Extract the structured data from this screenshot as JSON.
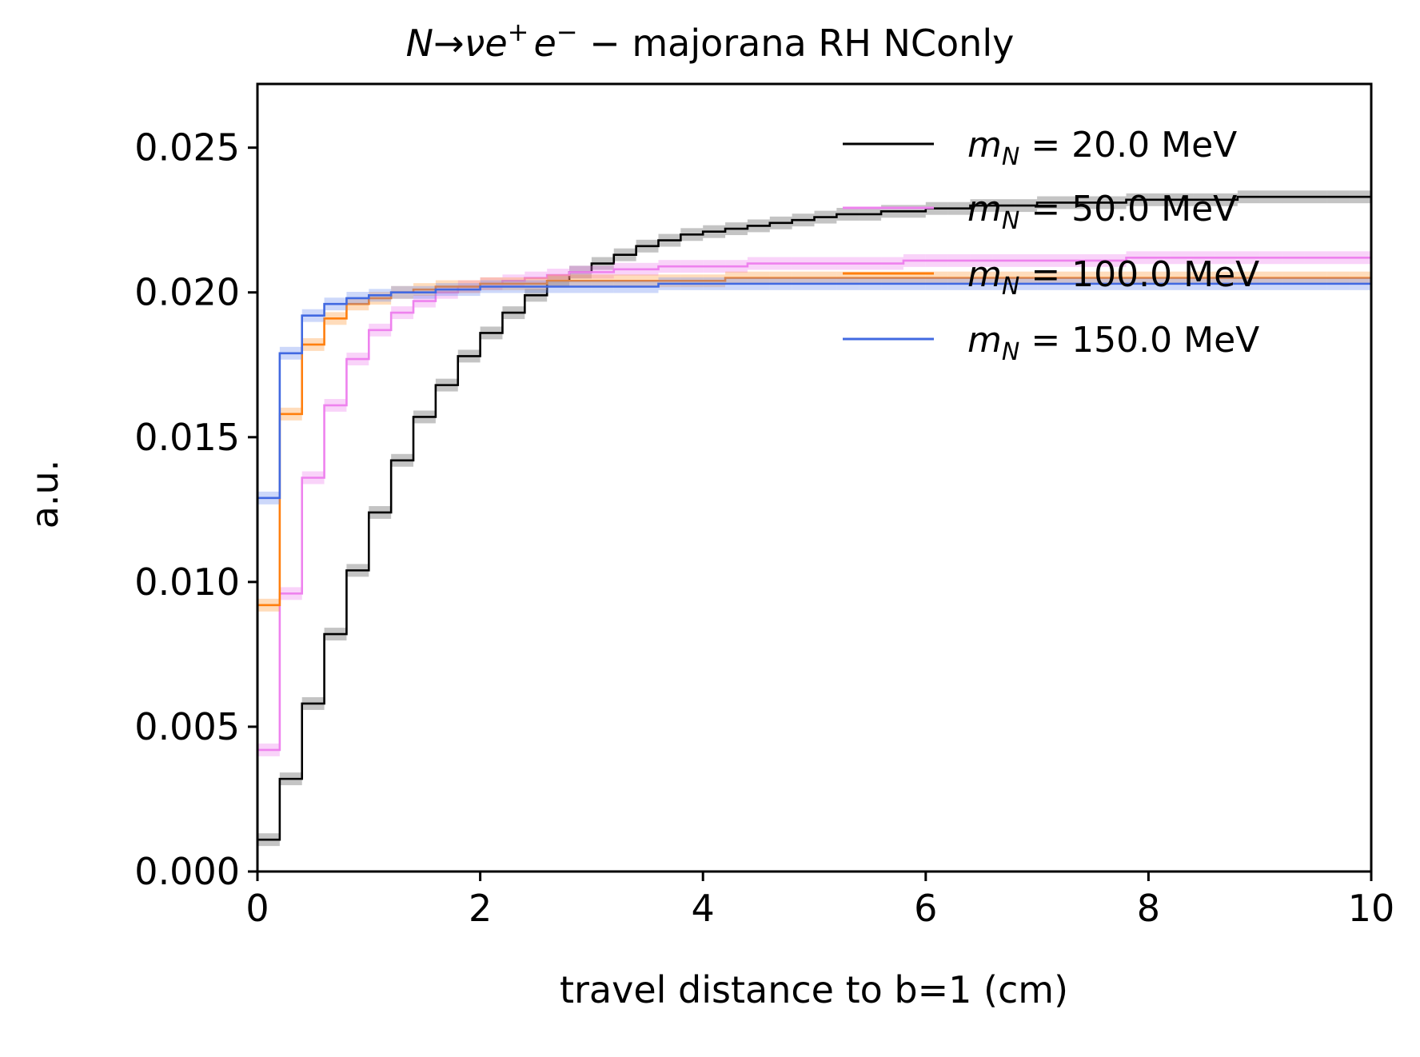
{
  "chart_data": {
    "type": "line",
    "title": "N→νe⁺e⁻ − majorana RH NConly",
    "title_parts": {
      "N": "N",
      "arrow": "→",
      "nu": "ν",
      "e": "e",
      "plus": "+",
      "minus": "−",
      "rest": " − majorana RH NConly"
    },
    "xlabel": "travel distance to b=1 (cm)",
    "ylabel": "a.u.",
    "xlim": [
      0,
      10
    ],
    "ylim": [
      0,
      0.0272
    ],
    "xticks": [
      0,
      2,
      4,
      6,
      8,
      10
    ],
    "xtick_labels": [
      "0",
      "2",
      "4",
      "6",
      "8",
      "10"
    ],
    "yticks": [
      0,
      0.005,
      0.01,
      0.015,
      0.02,
      0.025
    ],
    "ytick_labels": [
      "0.000",
      "0.005",
      "0.010",
      "0.015",
      "0.020",
      "0.025"
    ],
    "grid": false,
    "legend_position": "top-right",
    "step": true,
    "bin_edges": [
      0,
      0.2,
      0.4,
      0.6,
      0.8,
      1.0,
      1.2,
      1.4,
      1.6,
      1.8,
      2.0,
      2.2,
      2.4,
      2.6,
      2.8,
      3.0,
      3.2,
      3.4,
      3.6,
      3.8,
      4.0,
      4.2,
      4.4,
      4.6,
      4.8,
      5.0,
      5.2,
      5.4,
      5.6,
      5.8,
      6.0,
      6.2,
      6.4,
      6.6,
      6.8,
      7.0,
      7.2,
      7.4,
      7.6,
      7.8,
      8.0,
      8.2,
      8.4,
      8.6,
      8.8,
      9.0,
      9.2,
      9.4,
      9.6,
      9.8,
      10.0
    ],
    "series": [
      {
        "label_var": "m",
        "label_sub": "N",
        "label_eq": " = ",
        "label_value": "20.0 MeV",
        "color": "#000000",
        "band_color": "#555555",
        "values": [
          0.0011,
          0.0032,
          0.0058,
          0.0082,
          0.0104,
          0.0124,
          0.0142,
          0.0157,
          0.0168,
          0.0178,
          0.0186,
          0.0193,
          0.0199,
          0.0204,
          0.0207,
          0.021,
          0.0213,
          0.0216,
          0.0218,
          0.022,
          0.0221,
          0.0222,
          0.0223,
          0.0224,
          0.0225,
          0.0226,
          0.0227,
          0.0227,
          0.0228,
          0.0228,
          0.0229,
          0.0229,
          0.023,
          0.023,
          0.023,
          0.0231,
          0.0231,
          0.0231,
          0.0231,
          0.0232,
          0.0232,
          0.0232,
          0.0232,
          0.0232,
          0.0233,
          0.0233,
          0.0233,
          0.0233,
          0.0233,
          0.0233
        ]
      },
      {
        "label_var": "m",
        "label_sub": "N",
        "label_eq": " = ",
        "label_value": "50.0 MeV",
        "color": "#ee82ee",
        "band_color": "#ee82ee",
        "values": [
          0.0042,
          0.0096,
          0.0136,
          0.0161,
          0.0177,
          0.0187,
          0.0193,
          0.0197,
          0.02,
          0.0202,
          0.0203,
          0.0204,
          0.0205,
          0.0206,
          0.0207,
          0.0207,
          0.0208,
          0.0208,
          0.0209,
          0.0209,
          0.0209,
          0.0209,
          0.021,
          0.021,
          0.021,
          0.021,
          0.021,
          0.021,
          0.021,
          0.0211,
          0.0211,
          0.0211,
          0.0211,
          0.0211,
          0.0211,
          0.0211,
          0.0211,
          0.0211,
          0.0211,
          0.0212,
          0.0212,
          0.0212,
          0.0212,
          0.0212,
          0.0212,
          0.0212,
          0.0212,
          0.0212,
          0.0212,
          0.0212
        ]
      },
      {
        "label_var": "m",
        "label_sub": "N",
        "label_eq": " = ",
        "label_value": "100.0 MeV",
        "color": "#ff7f0e",
        "band_color": "#ff9a3c",
        "values": [
          0.0092,
          0.0158,
          0.0182,
          0.0191,
          0.0196,
          0.0198,
          0.02,
          0.0201,
          0.0202,
          0.0202,
          0.0203,
          0.0203,
          0.0203,
          0.0204,
          0.0204,
          0.0204,
          0.0204,
          0.0204,
          0.0204,
          0.0204,
          0.0204,
          0.0205,
          0.0205,
          0.0205,
          0.0205,
          0.0205,
          0.0205,
          0.0205,
          0.0205,
          0.0205,
          0.0205,
          0.0205,
          0.0205,
          0.0205,
          0.0205,
          0.0205,
          0.0205,
          0.0205,
          0.0205,
          0.0205,
          0.0205,
          0.0205,
          0.0205,
          0.0205,
          0.0205,
          0.0205,
          0.0205,
          0.0205,
          0.0205,
          0.0205
        ]
      },
      {
        "label_var": "m",
        "label_sub": "N",
        "label_eq": " = ",
        "label_value": "150.0 MeV",
        "color": "#4169e1",
        "band_color": "#6f8ff0",
        "values": [
          0.0129,
          0.0179,
          0.0192,
          0.0196,
          0.0198,
          0.0199,
          0.02,
          0.02,
          0.0201,
          0.0201,
          0.0202,
          0.0202,
          0.0202,
          0.0202,
          0.0202,
          0.0202,
          0.0202,
          0.0202,
          0.0203,
          0.0203,
          0.0203,
          0.0203,
          0.0203,
          0.0203,
          0.0203,
          0.0203,
          0.0203,
          0.0203,
          0.0203,
          0.0203,
          0.0203,
          0.0203,
          0.0203,
          0.0203,
          0.0203,
          0.0203,
          0.0203,
          0.0203,
          0.0203,
          0.0203,
          0.0203,
          0.0203,
          0.0203,
          0.0203,
          0.0203,
          0.0203,
          0.0203,
          0.0203,
          0.0203,
          0.0203
        ]
      }
    ]
  }
}
